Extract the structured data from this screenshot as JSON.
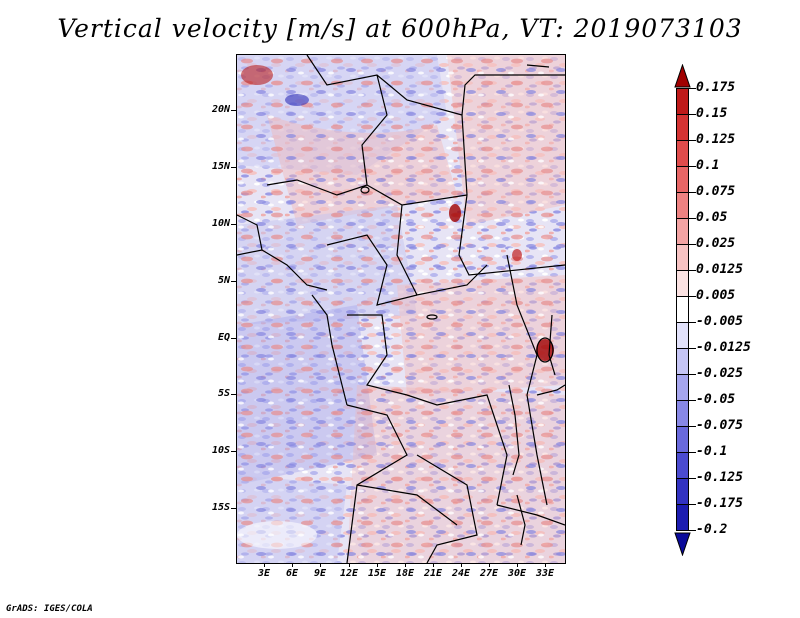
{
  "title": "Vertical velocity [m/s] at 600hPa, VT: 2019073103",
  "footer": "GrADS: IGES/COLA",
  "map": {
    "lat_labels": [
      "20N",
      "15N",
      "10N",
      "5N",
      "EQ",
      "5S",
      "10S",
      "15S"
    ],
    "lon_labels": [
      "3E",
      "6E",
      "9E",
      "12E",
      "15E",
      "18E",
      "21E",
      "24E",
      "27E",
      "30E",
      "33E"
    ]
  },
  "colorbar": {
    "labels": [
      "0.175",
      "0.15",
      "0.125",
      "0.1",
      "0.075",
      "0.05",
      "0.025",
      "0.0125",
      "0.005",
      "-0.005",
      "-0.0125",
      "-0.025",
      "-0.05",
      "-0.075",
      "-0.1",
      "-0.125",
      "-0.175",
      "-0.2"
    ],
    "colors": [
      "#a00000",
      "#bf1a1a",
      "#d43333",
      "#e04c4c",
      "#e86666",
      "#ee8282",
      "#f3a3a3",
      "#f7c3c3",
      "#fbe2e2",
      "#ffffff",
      "#e2e2fb",
      "#c5c5f5",
      "#a6a6ee",
      "#8888e6",
      "#6969dc",
      "#4b4bd0",
      "#3232c2",
      "#1c1cb0",
      "#0a0a9a"
    ],
    "top_arrow_color": "#a00000",
    "bottom_arrow_color": "#0a0a9a"
  }
}
